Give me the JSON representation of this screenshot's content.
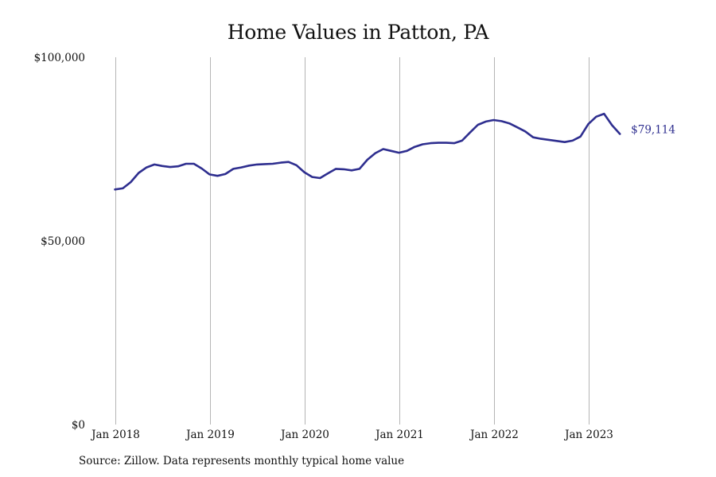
{
  "title": "Home Values in Patton, PA",
  "source": "Source: Zillow. Data represents monthly typical home value",
  "colors": {
    "line": "#2e2e8f",
    "gridline": "#b5b5b5",
    "text": "#111111"
  },
  "chart_data": {
    "type": "line",
    "title": "Home Values in Patton, PA",
    "xlabel": "",
    "ylabel": "",
    "grid": "vertical",
    "legend": "none",
    "xlim": [
      "2018-01",
      "2023-12"
    ],
    "ylim": [
      0,
      100000
    ],
    "y_ticks": [
      {
        "value": 0,
        "label": "$0"
      },
      {
        "value": 50000,
        "label": "$50,000"
      },
      {
        "value": 100000,
        "label": "$100,000"
      }
    ],
    "x_ticks": [
      {
        "value": "2018-01",
        "label": "Jan 2018"
      },
      {
        "value": "2019-01",
        "label": "Jan 2019"
      },
      {
        "value": "2020-01",
        "label": "Jan 2020"
      },
      {
        "value": "2021-01",
        "label": "Jan 2021"
      },
      {
        "value": "2022-01",
        "label": "Jan 2022"
      },
      {
        "value": "2023-01",
        "label": "Jan 2023"
      }
    ],
    "end_label": "$79,114",
    "series": [
      {
        "x": [
          "2018-01",
          "2018-02",
          "2018-03",
          "2018-04",
          "2018-05",
          "2018-06",
          "2018-07",
          "2018-08",
          "2018-09",
          "2018-10",
          "2018-11",
          "2018-12",
          "2019-01",
          "2019-02",
          "2019-03",
          "2019-04",
          "2019-05",
          "2019-06",
          "2019-07",
          "2019-08",
          "2019-09",
          "2019-10",
          "2019-11",
          "2019-12",
          "2020-01",
          "2020-02",
          "2020-03",
          "2020-04",
          "2020-05",
          "2020-06",
          "2020-07",
          "2020-08",
          "2020-09",
          "2020-10",
          "2020-11",
          "2020-12",
          "2021-01",
          "2021-02",
          "2021-03",
          "2021-04",
          "2021-05",
          "2021-06",
          "2021-07",
          "2021-08",
          "2021-09",
          "2021-10",
          "2021-11",
          "2021-12",
          "2022-01",
          "2022-02",
          "2022-03",
          "2022-04",
          "2022-05",
          "2022-06",
          "2022-07",
          "2022-08",
          "2022-09",
          "2022-10",
          "2022-11",
          "2022-12",
          "2023-01",
          "2023-02",
          "2023-03",
          "2023-04",
          "2023-05"
        ],
        "values": [
          64000,
          64300,
          66000,
          68500,
          70000,
          70800,
          70400,
          70100,
          70300,
          71000,
          71000,
          69700,
          68100,
          67700,
          68200,
          69600,
          70000,
          70500,
          70800,
          70900,
          71000,
          71300,
          71500,
          70600,
          68700,
          67400,
          67100,
          68400,
          69600,
          69500,
          69200,
          69600,
          72100,
          73900,
          75000,
          74500,
          74000,
          74500,
          75600,
          76300,
          76600,
          76700,
          76700,
          76600,
          77300,
          79500,
          81600,
          82500,
          82900,
          82600,
          82000,
          80900,
          79800,
          78200,
          77800,
          77500,
          77200,
          76900,
          77300,
          78400,
          81800,
          83800,
          84600,
          81500,
          79114
        ]
      }
    ]
  }
}
